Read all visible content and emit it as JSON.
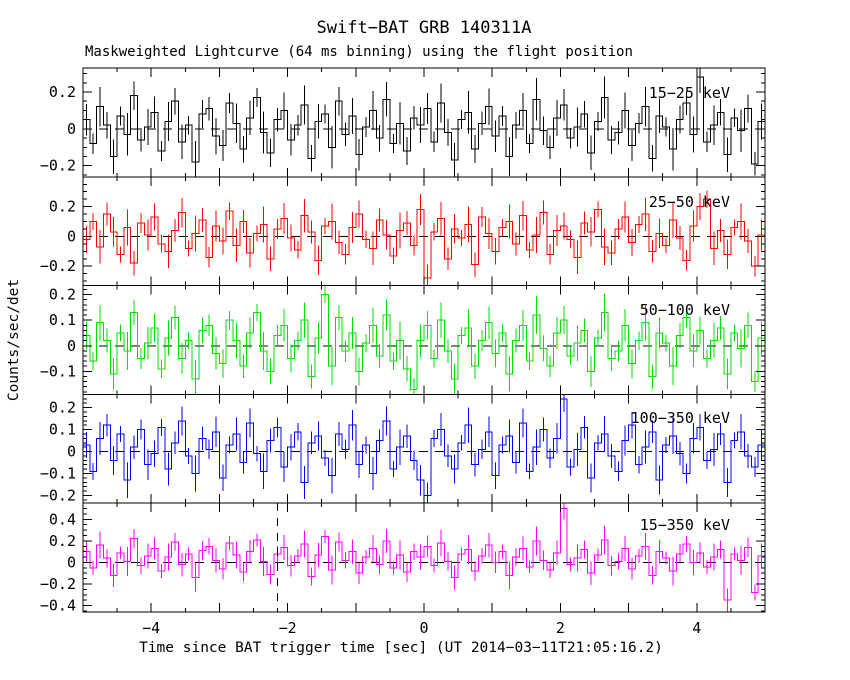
{
  "figure": {
    "title": "Swift−BAT GRB 140311A",
    "subtitle": "Maskweighted Lightcurve (64 ms binning) using the flight position",
    "background": "#FFFFFF",
    "frame_color": "#000000"
  },
  "chart_data": {
    "type": "line",
    "subtype": "step-histogram-with-errorbars",
    "title": "Swift−BAT GRB 140311A",
    "subtitle": "Maskweighted Lightcurve (64 ms binning) using the flight position",
    "xlabel": "Time since BAT trigger time [sec] (UT 2014−03−11T21:05:16.2)",
    "ylabel": "Counts/sec/det",
    "grid": false,
    "x_axis": {
      "min": -5,
      "max": 5,
      "major_tick_step": 1,
      "minor_tick_step": 0.5,
      "labeled_ticks": [
        {
          "v": -4,
          "label": "−4"
        },
        {
          "v": -2,
          "label": "−2"
        },
        {
          "v": 0,
          "label": "0"
        },
        {
          "v": 2,
          "label": "2"
        },
        {
          "v": 4,
          "label": "4"
        }
      ]
    },
    "bin_width_sec": 0.1,
    "zero_line": {
      "style": "dashed",
      "color": "#000000"
    },
    "marker_line": {
      "panel_index": 4,
      "time": -2.15,
      "style": "dashed",
      "color": "#000000"
    },
    "err_pattern": [
      1.0,
      0.65,
      1.25,
      0.85,
      1.1,
      0.6,
      1.35,
      0.9,
      0.75,
      1.15
    ],
    "panels": [
      {
        "label": "15−25 keV",
        "color": "#000000",
        "ylim": [
          -0.26,
          0.33
        ],
        "ytick_major_step": 0.2,
        "ytick_minor_step": 0.05,
        "yticks": [
          {
            "v": 0.2,
            "label": "0.2"
          },
          {
            "v": 0,
            "label": "0"
          },
          {
            "v": -0.2,
            "label": "−0.2"
          }
        ],
        "err_base": 0.085,
        "values": [
          0.05,
          -0.08,
          0.12,
          0.02,
          -0.15,
          0.07,
          -0.03,
          0.18,
          -0.06,
          0.01,
          0.09,
          -0.12,
          0.04,
          0.15,
          -0.07,
          0.02,
          -0.18,
          0.08,
          0.11,
          -0.04,
          -0.09,
          0.14,
          0.03,
          -0.11,
          0.06,
          0.17,
          -0.02,
          -0.13,
          0.05,
          0.1,
          -0.06,
          0.02,
          0.13,
          -0.16,
          0.04,
          0.08,
          -0.1,
          0.15,
          -0.03,
          0.07,
          -0.14,
          0.01,
          0.1,
          -0.05,
          0.16,
          -0.08,
          0.03,
          -0.12,
          0.06,
          0.02,
          0.11,
          -0.07,
          0.14,
          -0.02,
          -0.17,
          0.05,
          0.09,
          -0.11,
          0.03,
          0.12,
          -0.04,
          0.07,
          -0.15,
          0.02,
          0.1,
          -0.08,
          0.16,
          -0.01,
          -0.1,
          0.06,
          0.13,
          -0.05,
          0.01,
          0.08,
          -0.13,
          0.04,
          0.17,
          -0.06,
          -0.02,
          0.1,
          -0.09,
          0.03,
          0.12,
          -0.16,
          0.07,
          0.01,
          -0.11,
          0.05,
          0.14,
          -0.03,
          0.28,
          -0.07,
          0.02,
          0.09,
          -0.14,
          0.06,
          -0.01,
          0.11,
          -0.19,
          0.04
        ]
      },
      {
        "label": "25−50 keV",
        "color": "#FF0000",
        "ylim": [
          -0.33,
          0.4
        ],
        "ytick_major_step": 0.2,
        "ytick_minor_step": 0.05,
        "yticks": [
          {
            "v": 0.2,
            "label": "0.2"
          },
          {
            "v": 0,
            "label": "0"
          },
          {
            "v": -0.2,
            "label": "−0.2"
          }
        ],
        "err_base": 0.09,
        "values": [
          -0.02,
          0.1,
          -0.07,
          0.15,
          0.03,
          -0.12,
          0.06,
          -0.18,
          0.09,
          0.01,
          0.13,
          -0.05,
          -0.1,
          0.04,
          0.16,
          -0.08,
          0.02,
          0.11,
          -0.14,
          0.07,
          -0.03,
          0.17,
          -0.06,
          0.1,
          -0.11,
          0.02,
          0.08,
          -0.15,
          0.05,
          0.12,
          -0.01,
          -0.09,
          0.14,
          0.03,
          -0.16,
          0.07,
          0.1,
          -0.04,
          -0.12,
          0.06,
          0.15,
          -0.02,
          -0.08,
          0.11,
          0.01,
          -0.13,
          0.04,
          0.09,
          -0.06,
          0.18,
          -0.28,
          0.03,
          0.12,
          -0.15,
          0.05,
          -0.01,
          0.08,
          -0.19,
          0.13,
          0.02,
          -0.1,
          0.06,
          0.1,
          -0.05,
          0.14,
          -0.09,
          0.01,
          0.16,
          -0.12,
          0.04,
          0.07,
          -0.02,
          -0.14,
          0.09,
          0.03,
          0.18,
          -0.07,
          -0.11,
          0.05,
          0.13,
          -0.04,
          0.08,
          0.15,
          -0.1,
          0.02,
          -0.06,
          0.11,
          -0.01,
          -0.16,
          0.07,
          0.2,
          0.25,
          -0.08,
          0.04,
          -0.12,
          0.06,
          0.1,
          -0.03,
          -0.2,
          0.01
        ]
      },
      {
        "label": "50−100 keV",
        "color": "#00DD00",
        "ylim": [
          -0.19,
          0.235
        ],
        "ytick_major_step": 0.1,
        "ytick_minor_step": 0.02,
        "yticks": [
          {
            "v": 0.2,
            "label": "0.2"
          },
          {
            "v": 0.1,
            "label": "0.1"
          },
          {
            "v": 0,
            "label": "0"
          },
          {
            "v": -0.1,
            "label": "−0.1"
          }
        ],
        "err_base": 0.055,
        "values": [
          0.04,
          -0.06,
          0.09,
          0.02,
          -0.11,
          0.05,
          -0.02,
          0.13,
          -0.05,
          0.01,
          0.07,
          -0.09,
          0.03,
          0.11,
          -0.05,
          0.02,
          -0.13,
          0.06,
          0.08,
          -0.03,
          -0.07,
          0.1,
          0.02,
          -0.08,
          0.05,
          0.13,
          -0.02,
          -0.1,
          0.04,
          0.08,
          -0.05,
          0.02,
          0.1,
          -0.12,
          0.03,
          0.2,
          -0.08,
          0.11,
          -0.02,
          0.05,
          -0.1,
          0.01,
          0.08,
          -0.04,
          0.12,
          -0.06,
          0.02,
          -0.09,
          -0.17,
          0.02,
          0.08,
          -0.05,
          0.1,
          -0.02,
          -0.13,
          0.04,
          0.07,
          -0.08,
          0.02,
          0.09,
          -0.03,
          0.05,
          -0.11,
          0.02,
          0.08,
          -0.06,
          0.12,
          -0.01,
          -0.08,
          0.05,
          0.1,
          -0.04,
          0.01,
          0.06,
          -0.1,
          0.03,
          0.13,
          -0.05,
          -0.02,
          0.08,
          -0.07,
          0.02,
          0.09,
          -0.12,
          0.05,
          0.01,
          -0.08,
          0.04,
          0.11,
          -0.02,
          0.06,
          -0.05,
          0.02,
          0.07,
          -0.11,
          0.05,
          -0.01,
          0.08,
          -0.14,
          0.03
        ]
      },
      {
        "label": "100−350 keV",
        "color": "#0000FF",
        "ylim": [
          -0.235,
          0.26
        ],
        "ytick_major_step": 0.1,
        "ytick_minor_step": 0.02,
        "yticks": [
          {
            "v": 0.2,
            "label": "0.2"
          },
          {
            "v": 0.1,
            "label": "0.1"
          },
          {
            "v": 0,
            "label": "0"
          },
          {
            "v": -0.1,
            "label": "−0.1"
          },
          {
            "v": -0.2,
            "label": "−0.2"
          }
        ],
        "err_base": 0.06,
        "values": [
          0.03,
          -0.09,
          0.06,
          0.12,
          -0.04,
          0.08,
          -0.13,
          0.02,
          0.1,
          -0.06,
          -0.01,
          0.11,
          -0.08,
          0.04,
          0.14,
          -0.02,
          -0.1,
          0.06,
          0.01,
          0.09,
          -0.12,
          0.03,
          0.08,
          -0.05,
          0.13,
          -0.01,
          -0.09,
          0.05,
          0.11,
          -0.07,
          0.02,
          0.09,
          -0.14,
          0.04,
          0.07,
          -0.03,
          -0.11,
          0.08,
          0.01,
          0.12,
          -0.06,
          0.03,
          -0.1,
          0.05,
          0.14,
          -0.08,
          0.02,
          0.07,
          -0.04,
          -0.13,
          -0.2,
          0.06,
          0.1,
          -0.02,
          -0.08,
          0.04,
          0.12,
          -0.06,
          0.01,
          0.09,
          -0.11,
          0.03,
          0.07,
          -0.05,
          0.13,
          -0.09,
          0.02,
          0.1,
          -0.03,
          0.06,
          0.24,
          -0.07,
          0.01,
          0.11,
          -0.12,
          0.04,
          0.08,
          -0.02,
          -0.09,
          0.05,
          0.12,
          -0.06,
          0.02,
          0.09,
          -0.13,
          0.03,
          0.07,
          -0.01,
          -0.1,
          0.06,
          0.11,
          -0.04,
          0.01,
          0.08,
          -0.14,
          0.05,
          0.09,
          -0.02,
          -0.07,
          0.03
        ]
      },
      {
        "label": "15−350 keV",
        "color": "#FF00FF",
        "ylim": [
          -0.46,
          0.55
        ],
        "ytick_major_step": 0.2,
        "ytick_minor_step": 0.05,
        "yticks": [
          {
            "v": 0.4,
            "label": "0.4"
          },
          {
            "v": 0.2,
            "label": "0.2"
          },
          {
            "v": 0,
            "label": "0"
          },
          {
            "v": -0.2,
            "label": "−0.2"
          },
          {
            "v": -0.4,
            "label": "−0.4"
          }
        ],
        "err_base": 0.1,
        "values": [
          0.1,
          -0.05,
          0.16,
          0.04,
          -0.12,
          0.09,
          0.01,
          0.22,
          -0.03,
          0.06,
          0.13,
          -0.08,
          0.05,
          0.19,
          -0.02,
          0.08,
          -0.14,
          0.11,
          0.15,
          0.02,
          -0.06,
          0.18,
          0.07,
          -0.09,
          0.1,
          0.21,
          0.01,
          -0.11,
          0.08,
          0.14,
          -0.03,
          0.06,
          0.17,
          -0.13,
          0.07,
          0.24,
          -0.07,
          0.19,
          0.02,
          0.1,
          -0.1,
          0.05,
          0.13,
          -0.02,
          0.2,
          -0.05,
          0.07,
          -0.09,
          0.1,
          0.05,
          0.15,
          -0.03,
          0.18,
          0.01,
          -0.14,
          0.08,
          0.12,
          -0.08,
          0.06,
          0.16,
          0.0,
          0.1,
          -0.12,
          0.05,
          0.13,
          -0.04,
          0.2,
          0.02,
          -0.07,
          0.09,
          0.5,
          -0.02,
          0.04,
          0.12,
          -0.1,
          0.07,
          0.21,
          -0.03,
          0.01,
          0.13,
          -0.06,
          0.06,
          0.15,
          -0.12,
          0.1,
          0.04,
          -0.08,
          0.08,
          0.17,
          0.0,
          0.09,
          -0.04,
          0.05,
          0.12,
          -0.35,
          0.08,
          0.02,
          0.14,
          -0.28,
          0.06
        ]
      }
    ]
  }
}
